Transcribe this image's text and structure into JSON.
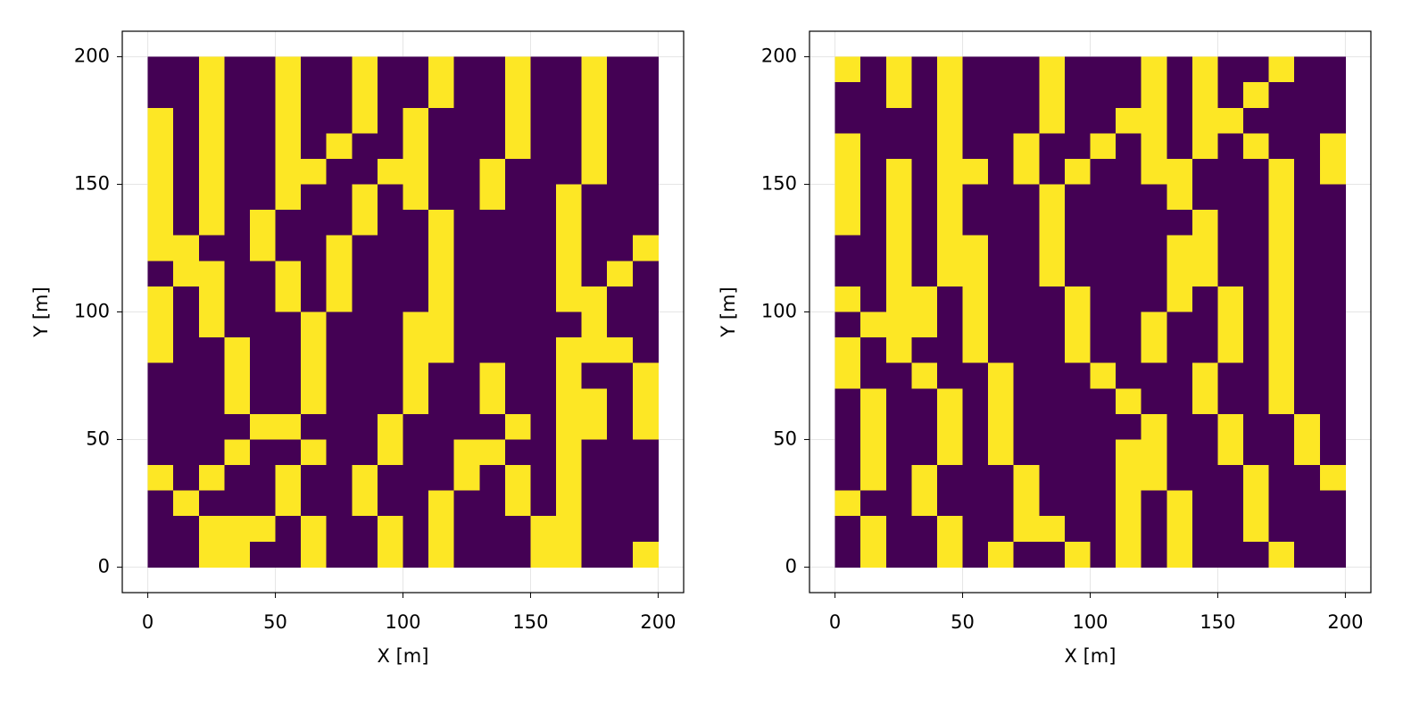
{
  "chart_data": [
    {
      "type": "heatmap",
      "xlabel": "X [m]",
      "ylabel": "Y [m]",
      "xlim": [
        -10,
        210
      ],
      "ylim": [
        -10,
        210
      ],
      "xticks": [
        0,
        50,
        100,
        150,
        200
      ],
      "yticks": [
        0,
        50,
        100,
        150,
        200
      ],
      "grid": true,
      "colors": [
        "#440154",
        "#fde725"
      ],
      "x": [
        5,
        15,
        25,
        35,
        45,
        55,
        65,
        75,
        85,
        95,
        105,
        115,
        125,
        135,
        145,
        155,
        165,
        175,
        185,
        195
      ],
      "y": [
        195,
        185,
        175,
        165,
        155,
        145,
        135,
        125,
        115,
        105,
        95,
        85,
        75,
        65,
        55,
        45,
        35,
        25,
        15,
        5
      ],
      "z": [
        [
          0,
          0,
          1,
          0,
          0,
          1,
          0,
          0,
          1,
          0,
          0,
          1,
          0,
          0,
          1,
          0,
          0,
          1,
          0,
          0
        ],
        [
          0,
          0,
          1,
          0,
          0,
          1,
          0,
          0,
          1,
          0,
          0,
          1,
          0,
          0,
          1,
          0,
          0,
          1,
          0,
          0
        ],
        [
          1,
          0,
          1,
          0,
          0,
          1,
          0,
          0,
          1,
          0,
          1,
          0,
          0,
          0,
          1,
          0,
          0,
          1,
          0,
          0
        ],
        [
          1,
          0,
          1,
          0,
          0,
          1,
          0,
          1,
          0,
          0,
          1,
          0,
          0,
          0,
          1,
          0,
          0,
          1,
          0,
          0
        ],
        [
          1,
          0,
          1,
          0,
          0,
          1,
          1,
          0,
          0,
          1,
          1,
          0,
          0,
          1,
          0,
          0,
          0,
          1,
          0,
          0
        ],
        [
          1,
          0,
          1,
          0,
          0,
          1,
          0,
          0,
          1,
          0,
          1,
          0,
          0,
          1,
          0,
          0,
          1,
          0,
          0,
          0
        ],
        [
          1,
          0,
          1,
          0,
          1,
          0,
          0,
          0,
          1,
          0,
          0,
          1,
          0,
          0,
          0,
          0,
          1,
          0,
          0,
          0
        ],
        [
          1,
          1,
          0,
          0,
          1,
          0,
          0,
          1,
          0,
          0,
          0,
          1,
          0,
          0,
          0,
          0,
          1,
          0,
          0,
          1
        ],
        [
          0,
          1,
          1,
          0,
          0,
          1,
          0,
          1,
          0,
          0,
          0,
          1,
          0,
          0,
          0,
          0,
          1,
          0,
          1,
          0
        ],
        [
          1,
          0,
          1,
          0,
          0,
          1,
          0,
          1,
          0,
          0,
          0,
          1,
          0,
          0,
          0,
          0,
          1,
          1,
          0,
          0
        ],
        [
          1,
          0,
          1,
          0,
          0,
          0,
          1,
          0,
          0,
          0,
          1,
          1,
          0,
          0,
          0,
          0,
          0,
          1,
          0,
          0
        ],
        [
          1,
          0,
          0,
          1,
          0,
          0,
          1,
          0,
          0,
          0,
          1,
          1,
          0,
          0,
          0,
          0,
          1,
          1,
          1,
          0
        ],
        [
          0,
          0,
          0,
          1,
          0,
          0,
          1,
          0,
          0,
          0,
          1,
          0,
          0,
          1,
          0,
          0,
          1,
          0,
          0,
          1
        ],
        [
          0,
          0,
          0,
          1,
          0,
          0,
          1,
          0,
          0,
          0,
          1,
          0,
          0,
          1,
          0,
          0,
          1,
          1,
          0,
          1
        ],
        [
          0,
          0,
          0,
          0,
          1,
          1,
          0,
          0,
          0,
          1,
          0,
          0,
          0,
          0,
          1,
          0,
          1,
          1,
          0,
          1
        ],
        [
          0,
          0,
          0,
          1,
          0,
          0,
          1,
          0,
          0,
          1,
          0,
          0,
          1,
          1,
          0,
          0,
          1,
          0,
          0,
          0
        ],
        [
          1,
          0,
          1,
          0,
          0,
          1,
          0,
          0,
          1,
          0,
          0,
          0,
          1,
          0,
          1,
          0,
          1,
          0,
          0,
          0
        ],
        [
          0,
          1,
          0,
          0,
          0,
          1,
          0,
          0,
          1,
          0,
          0,
          1,
          0,
          0,
          1,
          0,
          1,
          0,
          0,
          0
        ],
        [
          0,
          0,
          1,
          1,
          1,
          0,
          1,
          0,
          0,
          1,
          0,
          1,
          0,
          0,
          0,
          1,
          1,
          0,
          0,
          0
        ],
        [
          0,
          0,
          1,
          1,
          0,
          0,
          1,
          0,
          0,
          1,
          0,
          1,
          0,
          0,
          0,
          1,
          1,
          0,
          0,
          1
        ]
      ]
    },
    {
      "type": "heatmap",
      "xlabel": "X [m]",
      "ylabel": "Y [m]",
      "xlim": [
        -10,
        210
      ],
      "ylim": [
        -10,
        210
      ],
      "xticks": [
        0,
        50,
        100,
        150,
        200
      ],
      "yticks": [
        0,
        50,
        100,
        150,
        200
      ],
      "grid": true,
      "colors": [
        "#440154",
        "#fde725"
      ],
      "x": [
        5,
        15,
        25,
        35,
        45,
        55,
        65,
        75,
        85,
        95,
        105,
        115,
        125,
        135,
        145,
        155,
        165,
        175,
        185,
        195
      ],
      "y": [
        195,
        185,
        175,
        165,
        155,
        145,
        135,
        125,
        115,
        105,
        95,
        85,
        75,
        65,
        55,
        45,
        35,
        25,
        15,
        5
      ],
      "z": [
        [
          1,
          0,
          1,
          0,
          1,
          0,
          0,
          0,
          1,
          0,
          0,
          0,
          1,
          0,
          1,
          0,
          0,
          1,
          0,
          0
        ],
        [
          0,
          0,
          1,
          0,
          1,
          0,
          0,
          0,
          1,
          0,
          0,
          0,
          1,
          0,
          1,
          0,
          1,
          0,
          0,
          0
        ],
        [
          0,
          0,
          0,
          0,
          1,
          0,
          0,
          0,
          1,
          0,
          0,
          1,
          1,
          0,
          1,
          1,
          0,
          0,
          0,
          0
        ],
        [
          1,
          0,
          0,
          0,
          1,
          0,
          0,
          1,
          0,
          0,
          1,
          0,
          1,
          0,
          1,
          0,
          1,
          0,
          0,
          1
        ],
        [
          1,
          0,
          1,
          0,
          1,
          1,
          0,
          1,
          0,
          1,
          0,
          0,
          1,
          1,
          0,
          0,
          0,
          1,
          0,
          1
        ],
        [
          1,
          0,
          1,
          0,
          1,
          0,
          0,
          0,
          1,
          0,
          0,
          0,
          0,
          1,
          0,
          0,
          0,
          1,
          0,
          0
        ],
        [
          1,
          0,
          1,
          0,
          1,
          0,
          0,
          0,
          1,
          0,
          0,
          0,
          0,
          0,
          1,
          0,
          0,
          1,
          0,
          0
        ],
        [
          0,
          0,
          1,
          0,
          1,
          1,
          0,
          0,
          1,
          0,
          0,
          0,
          0,
          1,
          1,
          0,
          0,
          1,
          0,
          0
        ],
        [
          0,
          0,
          1,
          0,
          1,
          1,
          0,
          0,
          1,
          0,
          0,
          0,
          0,
          1,
          1,
          0,
          0,
          1,
          0,
          0
        ],
        [
          1,
          0,
          1,
          1,
          0,
          1,
          0,
          0,
          0,
          1,
          0,
          0,
          0,
          1,
          0,
          1,
          0,
          1,
          0,
          0
        ],
        [
          0,
          1,
          1,
          1,
          0,
          1,
          0,
          0,
          0,
          1,
          0,
          0,
          1,
          0,
          0,
          1,
          0,
          1,
          0,
          0
        ],
        [
          1,
          0,
          1,
          0,
          0,
          1,
          0,
          0,
          0,
          1,
          0,
          0,
          1,
          0,
          0,
          1,
          0,
          1,
          0,
          0
        ],
        [
          1,
          0,
          0,
          1,
          0,
          0,
          1,
          0,
          0,
          0,
          1,
          0,
          0,
          0,
          1,
          0,
          0,
          1,
          0,
          0
        ],
        [
          0,
          1,
          0,
          0,
          1,
          0,
          1,
          0,
          0,
          0,
          0,
          1,
          0,
          0,
          1,
          0,
          0,
          1,
          0,
          0
        ],
        [
          0,
          1,
          0,
          0,
          1,
          0,
          1,
          0,
          0,
          0,
          0,
          0,
          1,
          0,
          0,
          1,
          0,
          0,
          1,
          0
        ],
        [
          0,
          1,
          0,
          0,
          1,
          0,
          1,
          0,
          0,
          0,
          0,
          1,
          1,
          0,
          0,
          1,
          0,
          0,
          1,
          0
        ],
        [
          0,
          1,
          0,
          1,
          0,
          0,
          0,
          1,
          0,
          0,
          0,
          1,
          1,
          0,
          0,
          0,
          1,
          0,
          0,
          1
        ],
        [
          1,
          0,
          0,
          1,
          0,
          0,
          0,
          1,
          0,
          0,
          0,
          1,
          0,
          1,
          0,
          0,
          1,
          0,
          0,
          0
        ],
        [
          0,
          1,
          0,
          0,
          1,
          0,
          0,
          1,
          1,
          0,
          0,
          1,
          0,
          1,
          0,
          0,
          1,
          0,
          0,
          0
        ],
        [
          0,
          1,
          0,
          0,
          1,
          0,
          1,
          0,
          0,
          1,
          0,
          1,
          0,
          1,
          0,
          0,
          0,
          1,
          0,
          0
        ]
      ]
    }
  ]
}
